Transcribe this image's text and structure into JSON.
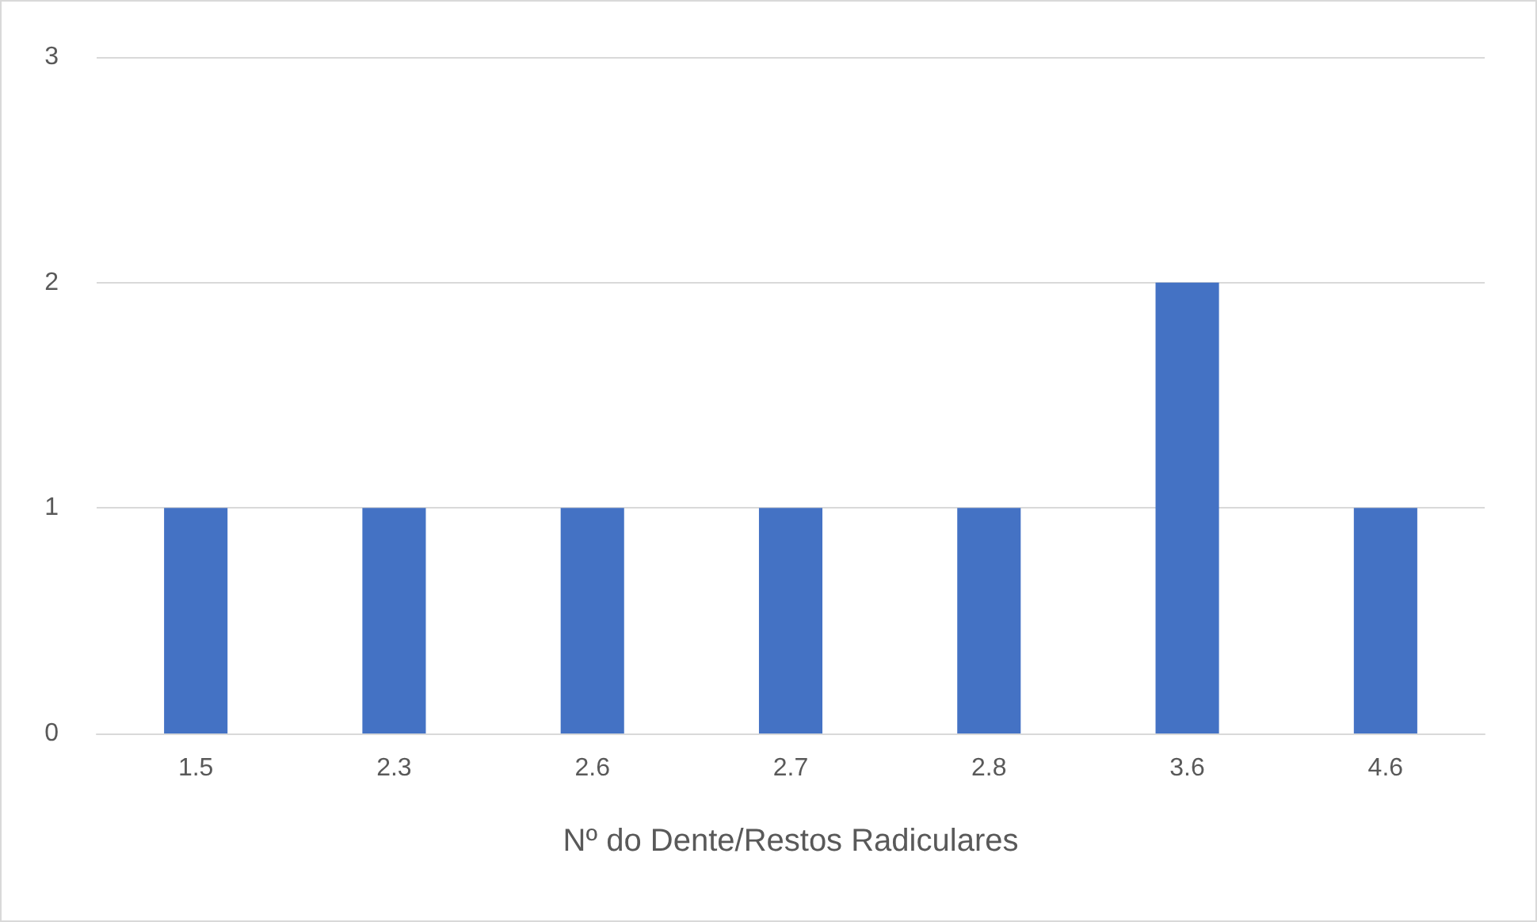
{
  "chart_data": {
    "type": "bar",
    "xlabel": "Nº do Dente/Restos Radiculares",
    "categories": [
      "1.5",
      "2.3",
      "2.6",
      "2.7",
      "2.8",
      "3.6",
      "4.6"
    ],
    "values": [
      1,
      1,
      1,
      1,
      1,
      2,
      1
    ],
    "color": "#4472c4",
    "ylim": [
      0,
      3
    ],
    "yticks": [
      0,
      1,
      2,
      3
    ],
    "grid": "y"
  }
}
